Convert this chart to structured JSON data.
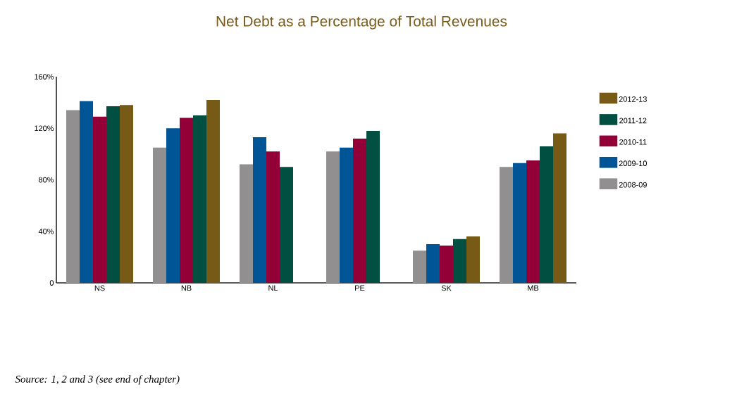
{
  "chart_data": {
    "type": "bar",
    "title": "Net Debt as a Percentage of Total Revenues",
    "categories": [
      "NS",
      "NB",
      "NL",
      "PE",
      "SK",
      "MB"
    ],
    "series": [
      {
        "name": "2008-09",
        "color": "#918f90",
        "values": [
          134,
          105,
          92,
          102,
          25,
          90
        ]
      },
      {
        "name": "2009-10",
        "color": "#005596",
        "values": [
          141,
          120,
          113,
          105,
          30,
          93
        ]
      },
      {
        "name": "2010-11",
        "color": "#930038",
        "values": [
          129,
          128,
          102,
          112,
          29,
          95
        ]
      },
      {
        "name": "2011-12",
        "color": "#004f40",
        "values": [
          137,
          130,
          90,
          118,
          34,
          106
        ]
      },
      {
        "name": "2012-13",
        "color": "#785a17",
        "values": [
          138,
          142,
          null,
          null,
          36,
          116
        ]
      }
    ],
    "ylim": [
      0,
      160
    ],
    "yticks": [
      {
        "value": 0,
        "label": "0"
      },
      {
        "value": 40,
        "label": "40%"
      },
      {
        "value": 80,
        "label": "80%"
      },
      {
        "value": 120,
        "label": "120%"
      },
      {
        "value": 160,
        "label": "160%"
      }
    ],
    "legend": "right",
    "annotations": [
      "Source:  1, 2 and 3 (see end of chapter)"
    ]
  }
}
